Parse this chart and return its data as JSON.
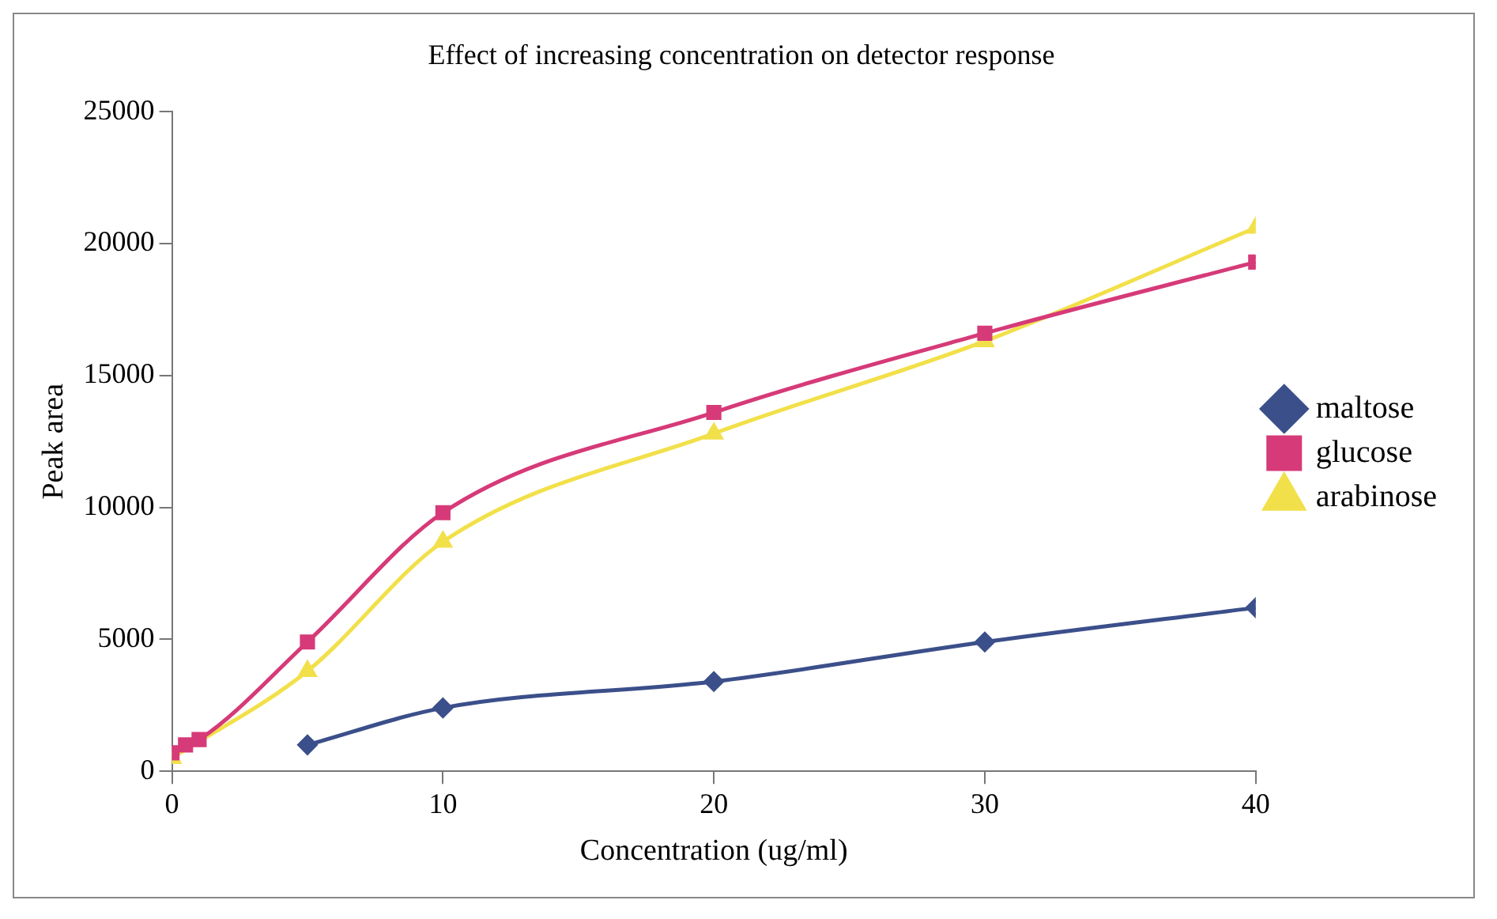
{
  "chart_data": {
    "type": "line",
    "title": "Effect of increasing concentration on detector response",
    "xlabel": "Concentration (ug/ml)",
    "ylabel": "Peak area",
    "xlim": [
      0,
      40
    ],
    "xticks": [
      0,
      10,
      20,
      30,
      40
    ],
    "ylim": [
      0,
      25000
    ],
    "yticks": [
      0,
      5000,
      10000,
      15000,
      20000,
      25000
    ],
    "grid": false,
    "legend": "right",
    "series": [
      {
        "name": "maltose",
        "color": "#3b4f8a",
        "marker": "diamond",
        "x": [
          5,
          10,
          20,
          30,
          40
        ],
        "values": [
          1000,
          2400,
          3400,
          4900,
          6200
        ]
      },
      {
        "name": "glucose",
        "color": "#d63a78",
        "marker": "square",
        "x": [
          0,
          0.5,
          1,
          5,
          10,
          20,
          30,
          40
        ],
        "values": [
          700,
          1000,
          1200,
          4900,
          9800,
          13600,
          16600,
          19300
        ]
      },
      {
        "name": "arabinose",
        "color": "#f2e04a",
        "marker": "triangle",
        "x": [
          0,
          0.5,
          1,
          5,
          10,
          20,
          30,
          40
        ],
        "values": [
          500,
          null,
          null,
          3800,
          8700,
          12800,
          16300,
          20600
        ]
      }
    ]
  }
}
